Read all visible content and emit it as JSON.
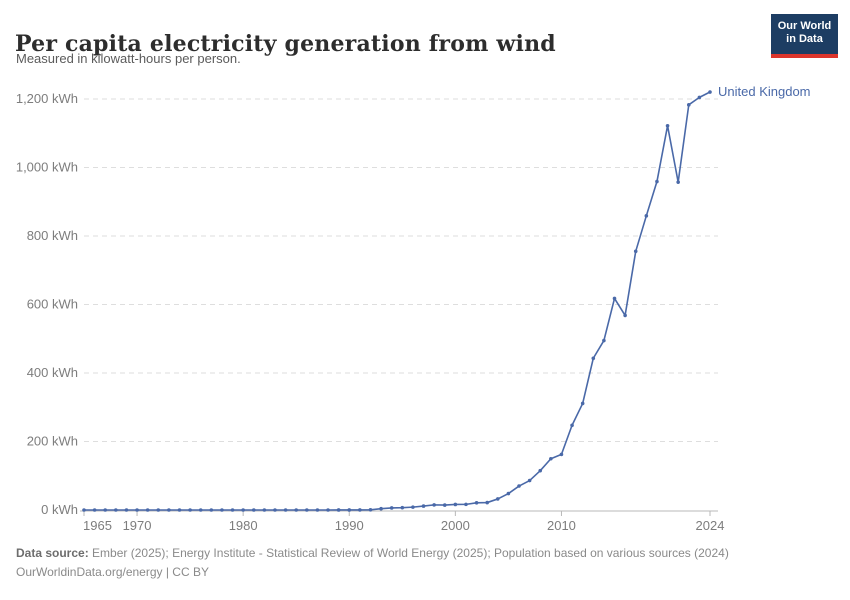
{
  "header": {
    "title": "Per capita electricity generation from wind",
    "subtitle": "Measured in kilowatt-hours per person.",
    "logo": {
      "line1": "Our World",
      "line2": "in Data",
      "bg_color": "#1d3d63",
      "accent_color": "#dc352c"
    }
  },
  "chart_data": {
    "type": "line",
    "title": "Per capita electricity generation from wind",
    "xlabel": "",
    "ylabel": "kWh per person",
    "xlim": [
      1965,
      2024
    ],
    "ylim": [
      0,
      1200
    ],
    "grid": "horizontal-dashed",
    "legend_position": "end-of-line",
    "grid_color": "#dedede",
    "axis_color": "#b8b8b8",
    "tick_label_color": "#7d7d7d",
    "x_ticks": {
      "values": [
        1965,
        1970,
        1980,
        1990,
        2000,
        2010,
        2024
      ],
      "labels": [
        "1965",
        "1970",
        "1980",
        "1990",
        "2000",
        "2010",
        "2024"
      ]
    },
    "y_ticks": {
      "values": [
        0,
        200,
        400,
        600,
        800,
        1000,
        1200
      ],
      "labels": [
        "0 kWh",
        "200 kWh",
        "400 kWh",
        "600 kWh",
        "800 kWh",
        "1,000 kWh",
        "1,200 kWh"
      ]
    },
    "series": [
      {
        "name": "United Kingdom",
        "color": "#4a69a8",
        "x": [
          1965,
          1966,
          1967,
          1968,
          1969,
          1970,
          1971,
          1972,
          1973,
          1974,
          1975,
          1976,
          1977,
          1978,
          1979,
          1980,
          1981,
          1982,
          1983,
          1984,
          1985,
          1986,
          1987,
          1988,
          1989,
          1990,
          1991,
          1992,
          1993,
          1994,
          1995,
          1996,
          1997,
          1998,
          1999,
          2000,
          2001,
          2002,
          2003,
          2004,
          2005,
          2006,
          2007,
          2008,
          2009,
          2010,
          2011,
          2012,
          2013,
          2014,
          2015,
          2016,
          2017,
          2018,
          2019,
          2020,
          2021,
          2022,
          2023,
          2024
        ],
        "values": [
          0,
          0,
          0,
          0,
          0,
          0,
          0,
          0,
          0,
          0,
          0,
          0,
          0,
          0,
          0,
          0,
          0,
          0,
          0,
          0,
          0,
          0,
          0,
          0,
          0.1,
          0.1,
          0.2,
          0.6,
          3.8,
          5.9,
          6.7,
          8.4,
          11.4,
          15,
          14.4,
          16.1,
          16.4,
          21.1,
          21.7,
          32.3,
          48,
          69.9,
          86,
          114.8,
          149.6,
          162.3,
          247.4,
          311.2,
          443,
          494.8,
          617.6,
          568.2,
          755.3,
          858.9,
          959,
          1121.9,
          957.2,
          1183,
          1204.7,
          1220.4
        ]
      }
    ]
  },
  "footer": {
    "source_label": "Data source:",
    "source_text": "Ember (2025); Energy Institute - Statistical Review of World Energy (2025); Population based on various sources (2024)",
    "license_line": "OurWorldinData.org/energy | CC BY"
  }
}
